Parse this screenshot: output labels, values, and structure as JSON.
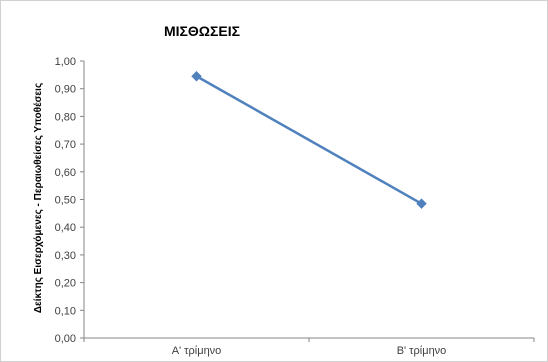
{
  "chart_data": {
    "type": "line",
    "title": "ΜΙΣΘΩΣΕΙΣ",
    "xlabel": "",
    "ylabel": "Δείκτης Εισερχόμενες - Περαιωθείσες Υποθέσεις",
    "categories": [
      "Α'  τρίμηνο",
      "Β' τρίμηνο"
    ],
    "series": [
      {
        "values": [
          0.945,
          0.485
        ],
        "color": "#4f81bd"
      }
    ],
    "ylim": [
      0,
      1
    ],
    "yticks": [
      "0,00",
      "0,10",
      "0,20",
      "0,30",
      "0,40",
      "0,50",
      "0,60",
      "0,70",
      "0,80",
      "0,90",
      "1,00"
    ],
    "grid": false,
    "legend": "none",
    "marker": "diamond"
  }
}
